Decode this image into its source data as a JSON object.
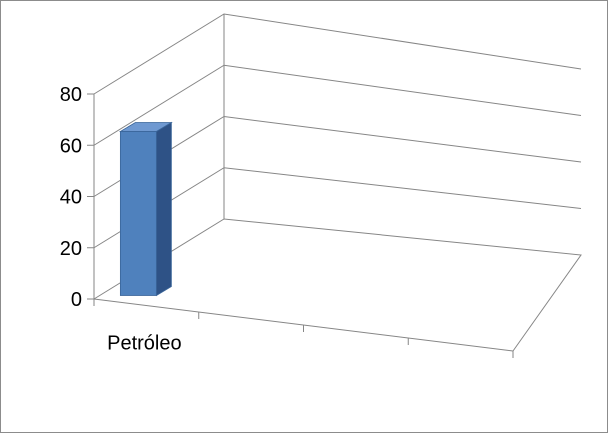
{
  "chart_data": {
    "type": "bar",
    "style": "3d-column",
    "categories": [
      "Petróleo",
      "",
      "",
      ""
    ],
    "values": [
      64,
      null,
      null,
      null
    ],
    "ylim": [
      0,
      80
    ],
    "yticks": [
      0,
      20,
      40,
      60,
      80
    ],
    "grid": true,
    "title": "",
    "xlabel": "",
    "ylabel": "",
    "colors": {
      "bar_front": "#4f81bd",
      "bar_side": "#2e5286",
      "bar_top": "#6f99d1",
      "bar_edge": "#3a6599",
      "grid": "#868686",
      "axis": "#868686"
    }
  }
}
